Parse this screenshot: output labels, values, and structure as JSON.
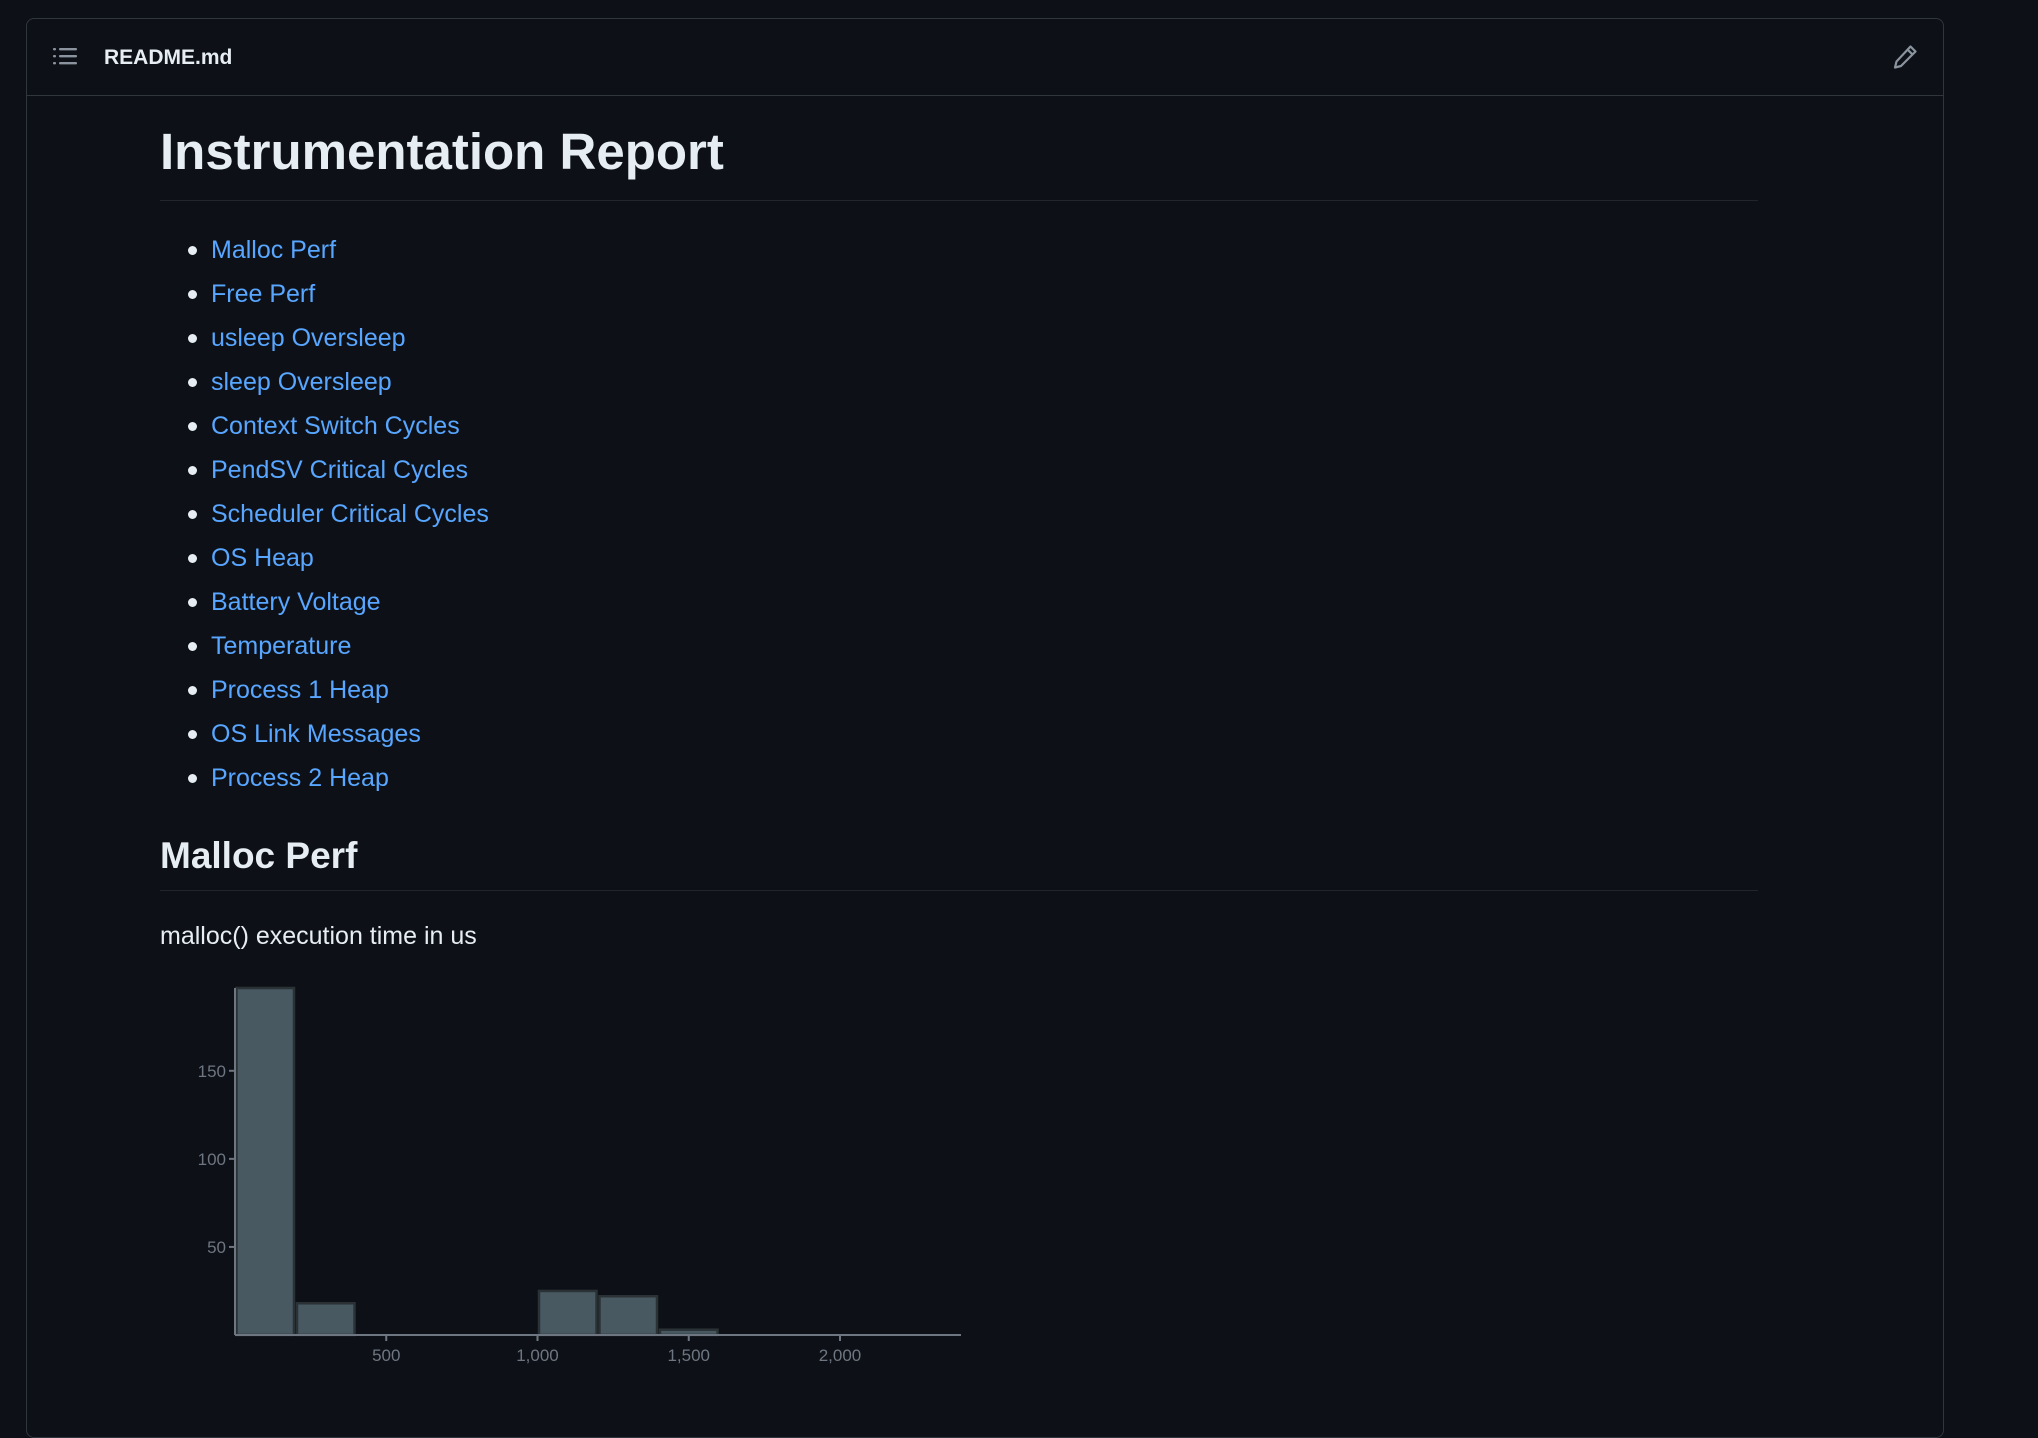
{
  "header": {
    "filename": "README.md",
    "outline_icon": "list-unordered-icon",
    "edit_icon": "pencil-icon"
  },
  "article": {
    "title": "Instrumentation Report",
    "toc": [
      "Malloc Perf",
      "Free Perf",
      "usleep Oversleep",
      "sleep Oversleep",
      "Context Switch Cycles",
      "PendSV Critical Cycles",
      "Scheduler Critical Cycles",
      "OS Heap",
      "Battery Voltage",
      "Temperature",
      "Process 1 Heap",
      "OS Link Messages",
      "Process 2 Heap"
    ],
    "section_title": "Malloc Perf",
    "section_desc": "malloc() execution time in us"
  },
  "colors": {
    "background": "#0d1117",
    "link": "#58a6ff",
    "bar_fill": "#485962",
    "bar_stroke": "#2b3236"
  },
  "chart_data": {
    "type": "bar",
    "bin_edges": [
      0,
      200,
      400,
      600,
      800,
      1000,
      1200,
      1400,
      1600,
      1800,
      2000,
      2200,
      2400
    ],
    "values": [
      197,
      18,
      0,
      0,
      0,
      25,
      22,
      3,
      0,
      0,
      0,
      0
    ],
    "xticks": [
      500,
      1000,
      1500,
      2000
    ],
    "xtick_labels": [
      "500",
      "1,000",
      "1,500",
      "2,000"
    ],
    "yticks": [
      50,
      100,
      150
    ],
    "ytick_labels": [
      "50",
      "100",
      "150"
    ],
    "xlim": [
      0,
      2400
    ],
    "ylim": [
      0,
      197
    ],
    "title": "",
    "xlabel": "",
    "ylabel": "",
    "grid": false
  }
}
